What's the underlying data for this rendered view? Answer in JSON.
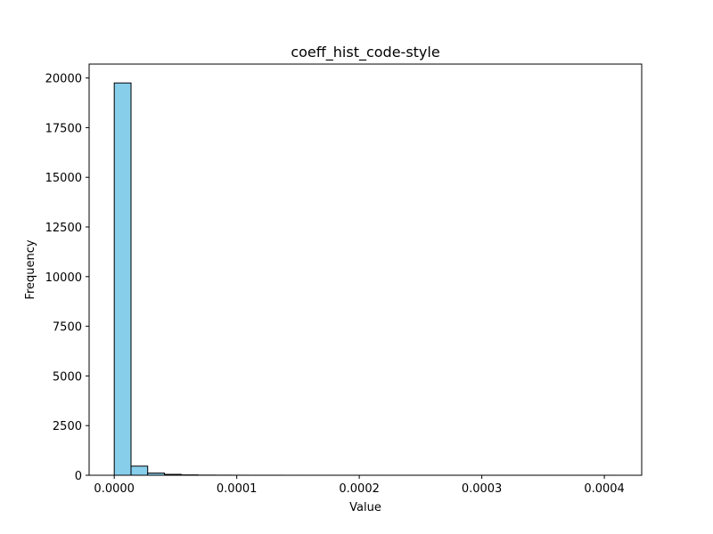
{
  "chart_data": {
    "type": "bar",
    "title": "coeff_hist_code-style",
    "xlabel": "Value",
    "ylabel": "Frequency",
    "bar_color": "#87CEEB",
    "edge_color": "#000000",
    "xlim": [
      -2.05e-05,
      0.0004305
    ],
    "ylim": [
      0,
      20700
    ],
    "xticks": [
      {
        "value": 0,
        "label": "0.0000"
      },
      {
        "value": 0.0001,
        "label": "0.0001"
      },
      {
        "value": 0.0002,
        "label": "0.0002"
      },
      {
        "value": 0.0003,
        "label": "0.0003"
      },
      {
        "value": 0.0004,
        "label": "0.0004"
      }
    ],
    "yticks": [
      {
        "value": 0,
        "label": "0"
      },
      {
        "value": 2500,
        "label": "2500"
      },
      {
        "value": 5000,
        "label": "5000"
      },
      {
        "value": 7500,
        "label": "7500"
      },
      {
        "value": 10000,
        "label": "10000"
      },
      {
        "value": 12500,
        "label": "12500"
      },
      {
        "value": 15000,
        "label": "15000"
      },
      {
        "value": 17500,
        "label": "17500"
      },
      {
        "value": 20000,
        "label": "20000"
      }
    ],
    "bin_edges": [
      0,
      1.37e-05,
      2.73e-05,
      4.1e-05,
      5.47e-05,
      6.83e-05,
      8.2e-05,
      9.57e-05,
      0.0001093,
      0.000123,
      0.0001367,
      0.0001503,
      0.000164,
      0.0001777,
      0.0001913,
      0.000205,
      0.0002187,
      0.0002323,
      0.000246,
      0.0002597,
      0.0002733,
      0.000287,
      0.0003007,
      0.0003143,
      0.000328,
      0.0003417,
      0.0003553,
      0.000369,
      0.0003827,
      0.0003963,
      0.00041
    ],
    "values": [
      19750,
      460,
      110,
      45,
      18,
      8,
      5,
      3,
      2,
      2,
      1,
      1,
      1,
      1,
      1,
      1,
      1,
      1,
      1,
      1,
      1,
      1,
      1,
      1,
      1,
      1,
      1,
      1,
      1,
      1
    ]
  }
}
